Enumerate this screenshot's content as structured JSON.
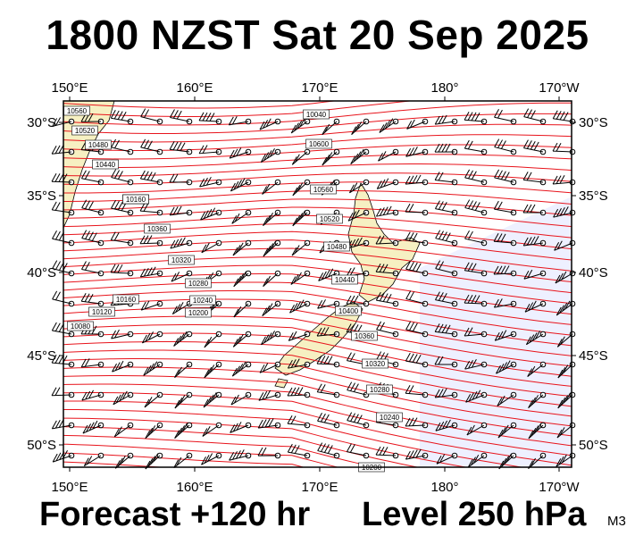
{
  "title": "1800 NZST Sat 20 Sep 2025",
  "forecast_label": "Forecast +120 hr",
  "level_label": "Level 250 hPa",
  "model_tag": "M3",
  "map": {
    "longitude_labels": [
      "150°E",
      "160°E",
      "170°E",
      "180°",
      "170°W"
    ],
    "latitude_labels": [
      "30°S",
      "35°S",
      "40°S",
      "45°S",
      "50°S"
    ],
    "contour_labels": [
      "10560",
      "10520",
      "10480",
      "10440",
      "10400",
      "10360",
      "10320",
      "10280",
      "10240",
      "10200",
      "10160",
      "10120",
      "10080",
      "10040",
      "10600",
      "10560",
      "10520",
      "10480",
      "10440",
      "10400",
      "10360",
      "10320",
      "10280",
      "10240",
      "10200",
      "10160"
    ],
    "colors": {
      "contour": "#e8141c",
      "land": "#f6f0c2",
      "ocean": "#ffffff",
      "low_region": "#eef0ff",
      "frame": "#000000"
    },
    "field": "geopotential height contours with wind barbs"
  }
}
